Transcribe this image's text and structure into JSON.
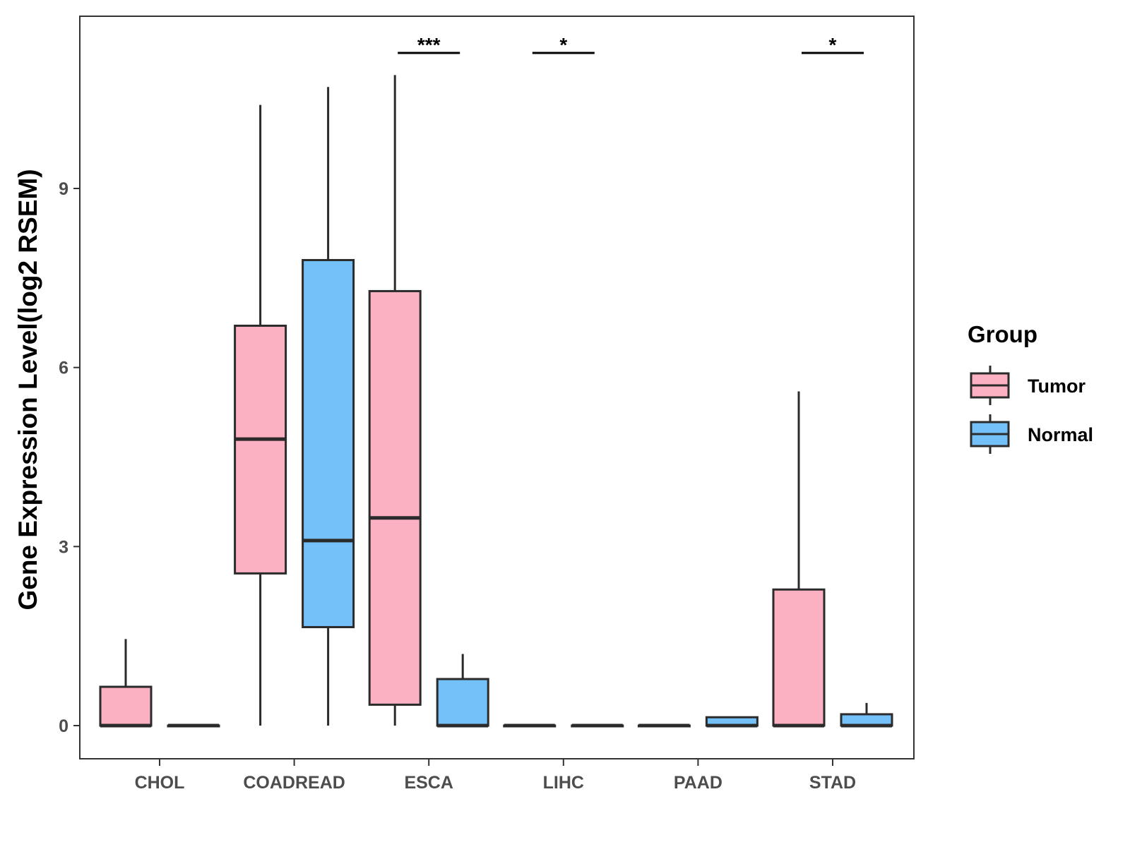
{
  "chart_data": {
    "type": "boxplot",
    "title": "",
    "xlabel": "",
    "ylabel": "Gene Expression Level(log2 RSEM)",
    "ylim": [
      -0.55,
      11.85
    ],
    "yticks": [
      0,
      3,
      6,
      9
    ],
    "grid": false,
    "legend": {
      "title": "Group",
      "position": "right",
      "entries": [
        {
          "name": "Tumor",
          "color": "#FBB1C1"
        },
        {
          "name": "Normal",
          "color": "#74C0F8"
        }
      ]
    },
    "categories": [
      "CHOL",
      "COADREAD",
      "ESCA",
      "LIHC",
      "PAAD",
      "STAD"
    ],
    "series": [
      {
        "name": "Tumor",
        "color": "#FBB1C1",
        "boxes": [
          {
            "min": 0,
            "q1": 0,
            "median": 0,
            "q3": 0.65,
            "max": 1.45
          },
          {
            "min": 0,
            "q1": 2.55,
            "median": 4.8,
            "q3": 6.7,
            "max": 10.4
          },
          {
            "min": 0,
            "q1": 0.35,
            "median": 3.48,
            "q3": 7.28,
            "max": 10.9
          },
          {
            "min": 0,
            "q1": 0,
            "median": 0,
            "q3": 0,
            "max": 0
          },
          {
            "min": 0,
            "q1": 0,
            "median": 0,
            "q3": 0,
            "max": 0
          },
          {
            "min": 0,
            "q1": 0,
            "median": 0,
            "q3": 2.28,
            "max": 5.6
          }
        ]
      },
      {
        "name": "Normal",
        "color": "#74C0F8",
        "boxes": [
          {
            "min": 0,
            "q1": 0,
            "median": 0,
            "q3": 0,
            "max": 0
          },
          {
            "min": 0,
            "q1": 1.65,
            "median": 3.1,
            "q3": 7.8,
            "max": 10.7
          },
          {
            "min": 0,
            "q1": 0,
            "median": 0,
            "q3": 0.78,
            "max": 1.2
          },
          {
            "min": 0,
            "q1": 0,
            "median": 0,
            "q3": 0,
            "max": 0
          },
          {
            "min": 0,
            "q1": 0,
            "median": 0,
            "q3": 0.14,
            "max": 0.14
          },
          {
            "min": 0,
            "q1": 0,
            "median": 0,
            "q3": 0.19,
            "max": 0.38
          }
        ]
      }
    ],
    "annotations": [
      {
        "category": "ESCA",
        "label": "***"
      },
      {
        "category": "LIHC",
        "label": "*"
      },
      {
        "category": "STAD",
        "label": "*"
      }
    ]
  }
}
